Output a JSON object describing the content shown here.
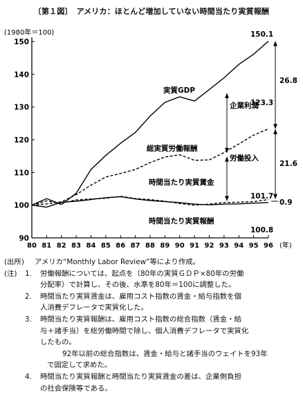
{
  "title": "〔第１図〕　アメリカ：ほとんど増加していない時間当たり実質報酬",
  "chart_data": {
    "type": "line",
    "ylabel": "(1980年＝100)",
    "xlabel": "(年)",
    "x": [
      "80",
      "81",
      "82",
      "83",
      "84",
      "85",
      "86",
      "87",
      "88",
      "89",
      "90",
      "91",
      "92",
      "93",
      "94",
      "95",
      "96"
    ],
    "ylim": [
      90,
      150
    ],
    "yticks": [
      90,
      100,
      110,
      120,
      130,
      140,
      150
    ],
    "series": [
      {
        "name": "実質GDP",
        "style": "solid",
        "values": [
          100,
          102.0,
          100.2,
          103.6,
          110.9,
          115.2,
          118.9,
          122.2,
          127.2,
          131.4,
          133.1,
          131.8,
          135.3,
          138.9,
          143.0,
          146.1,
          150.1
        ]
      },
      {
        "name": "総実質労働報酬",
        "style": "dashed",
        "values": [
          100,
          100.4,
          101.0,
          103.2,
          106.1,
          108.6,
          109.7,
          110.9,
          113.0,
          114.7,
          115.4,
          113.7,
          113.8,
          116.1,
          118.7,
          121.4,
          123.3
        ]
      },
      {
        "name": "時間当たり実質賃金",
        "style": "solid",
        "values": [
          100,
          99.4,
          100.9,
          101.2,
          101.7,
          102.3,
          102.6,
          101.9,
          101.4,
          101.1,
          100.8,
          100.3,
          100.1,
          100.3,
          100.4,
          100.6,
          100.8
        ]
      },
      {
        "name": "時間当たり実質報酬",
        "style": "dashed",
        "values": [
          100,
          101.3,
          100.6,
          101.6,
          101.9,
          102.1,
          102.7,
          102.0,
          101.7,
          101.2,
          100.5,
          100.0,
          100.3,
          100.8,
          100.9,
          101.1,
          101.7
        ]
      }
    ],
    "end_labels": [
      "150.1",
      "123.3",
      "101.7",
      "100.8"
    ],
    "bracket_labels": {
      "profit": "企業利潤",
      "labor_input": "労働投入"
    },
    "bracket_values": [
      "26.8",
      "21.6",
      "0.9"
    ]
  },
  "notes": {
    "source_label": "(出所)",
    "source_text": "アメリカ“Monthly Labor Review”等により作成。",
    "notes_label": "(注)",
    "items": [
      {
        "num": "1.",
        "lines": [
          "労働報酬については、起点を（80年の実質ＧＤＰ×80年の労働",
          "分配率）で計算し、その後、水準を80年＝100に調整した。"
        ]
      },
      {
        "num": "2.",
        "lines": [
          "時間当たり実質賃金は、雇用コスト指数の賃金・給与指数を個",
          "人消費デフレータで実質化した。"
        ]
      },
      {
        "num": "3.",
        "lines": [
          "時間当たり実質報酬は、雇用コスト指数の総合指数（賃金・給",
          "与＋諸手当）を総労働時間で除し、個人消費デフレータで実質化",
          "したもの。"
        ]
      }
    ],
    "extra_lines": [
      "92年以前の総合指数は、賃金・給与と諸手当のウェイトを93年",
      "で固定して求めた。"
    ],
    "item4": {
      "num": "4.",
      "lines": [
        "時間当たり実質報酬と時間当たり実質賃金の差は、企業側負担",
        "の社会保険等である。"
      ]
    }
  }
}
